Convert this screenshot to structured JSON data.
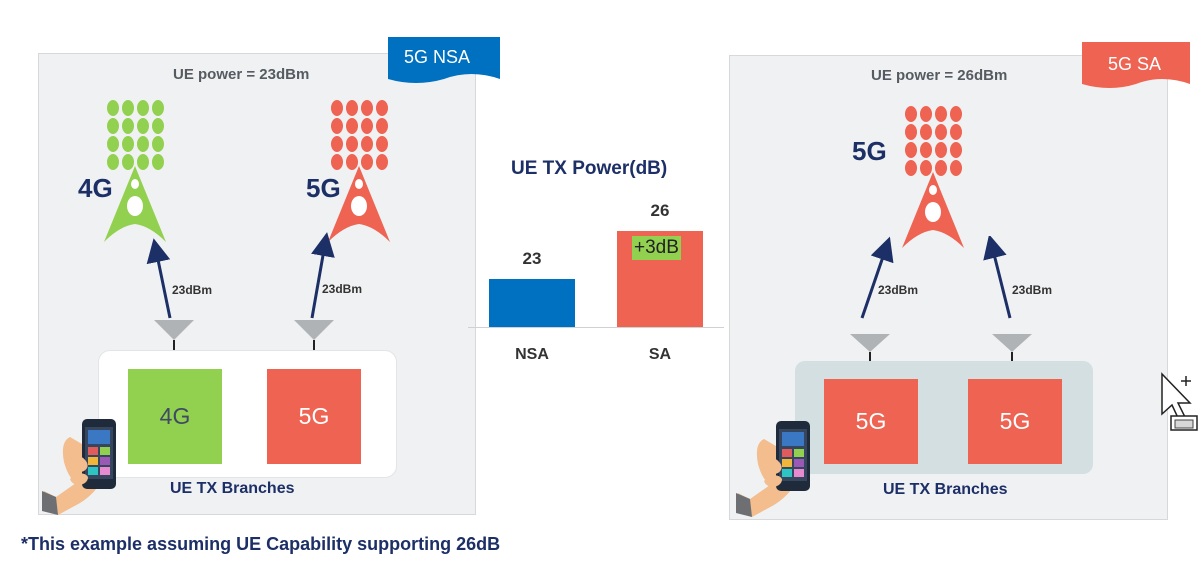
{
  "nsa": {
    "badge": "5G NSA",
    "power": "UE power = 23dBm",
    "tower_4g_label": "4G",
    "tower_5g_label": "5G",
    "link_left": "23dBm",
    "link_right": "23dBm",
    "box_left": "4G",
    "box_right": "5G",
    "caption": "UE TX Branches"
  },
  "sa": {
    "badge": "5G SA",
    "power": "UE power = 26dBm",
    "tower_label": "5G",
    "link_left": "23dBm",
    "link_right": "23dBm",
    "box_left": "5G",
    "box_right": "5G",
    "caption": "UE TX Branches"
  },
  "chart_data": {
    "type": "bar",
    "title": "UE TX Power(dB)",
    "categories": [
      "NSA",
      "SA"
    ],
    "values": [
      23,
      26
    ],
    "annotation": "+3dB",
    "colors": [
      "#0070c0",
      "#ee6352"
    ]
  },
  "note": "*This example assuming UE Capability supporting 26dB",
  "colors": {
    "green": "#92d050",
    "red": "#ee6352",
    "blue": "#0070c0",
    "navy": "#1c2f66",
    "antenna": "#b0b3b6"
  },
  "icons": [
    "smartphone-hand-icon",
    "cell-tower-icon",
    "antenna-icon",
    "mouse-cursor-icon"
  ]
}
